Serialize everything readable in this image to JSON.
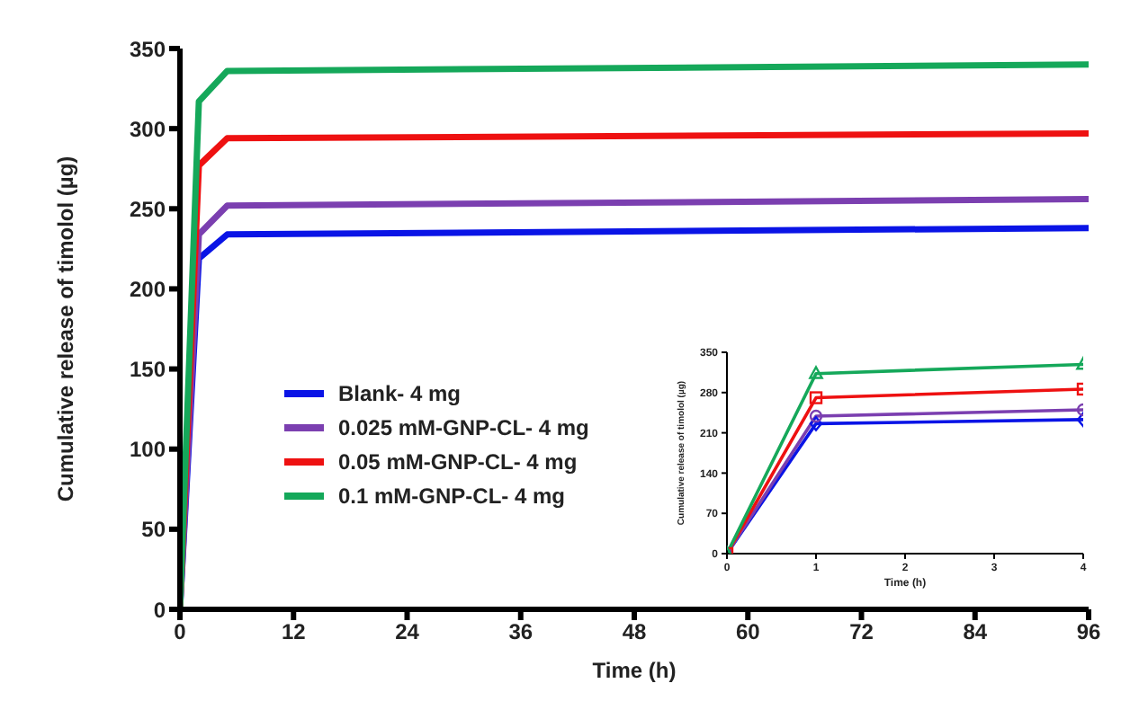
{
  "chart_data": [
    {
      "type": "line",
      "xlabel": "Time (h)",
      "ylabel": "Cumulative release of timolol (µg)",
      "x": [
        0,
        2,
        5,
        96
      ],
      "xlim": [
        0,
        96
      ],
      "xticks": [
        0,
        12,
        24,
        36,
        48,
        60,
        72,
        84,
        96
      ],
      "ylim": [
        0,
        350
      ],
      "yticks": [
        0,
        50,
        100,
        150,
        200,
        250,
        300,
        350
      ],
      "grid": false,
      "legend": "left",
      "marker": "none",
      "series": [
        {
          "name": "Blank- 4 mg",
          "color": "#0a14e6",
          "values": [
            0,
            219,
            234,
            238
          ]
        },
        {
          "name": "0.025 mM-GNP-CL- 4 mg",
          "color": "#7b3fb0",
          "values": [
            0,
            234,
            252,
            256
          ]
        },
        {
          "name": "0.05 mM-GNP-CL- 4 mg",
          "color": "#ee1111",
          "values": [
            0,
            277,
            294,
            297
          ]
        },
        {
          "name": "0.1 mM-GNP-CL- 4 mg",
          "color": "#15a85a",
          "values": [
            0,
            317,
            336,
            340
          ]
        }
      ]
    },
    {
      "type": "line",
      "xlabel": "Time (h)",
      "ylabel": "Cumulative release of timolol (µg)",
      "x": [
        0,
        1,
        4
      ],
      "xlim": [
        0,
        4
      ],
      "xticks": [
        0,
        1,
        2,
        3,
        4
      ],
      "ylim": [
        0,
        350
      ],
      "yticks": [
        0,
        70,
        140,
        210,
        280,
        350
      ],
      "grid": false,
      "legend": false,
      "series": [
        {
          "color": "#0a14e6",
          "marker": "diamond",
          "values": [
            0,
            226,
            233
          ]
        },
        {
          "color": "#7b3fb0",
          "marker": "circle",
          "values": [
            0,
            239,
            250
          ]
        },
        {
          "color": "#ee1111",
          "marker": "square",
          "values": [
            0,
            271,
            286
          ]
        },
        {
          "color": "#15a85a",
          "marker": "triangle",
          "values": [
            0,
            313,
            329
          ]
        }
      ]
    }
  ]
}
